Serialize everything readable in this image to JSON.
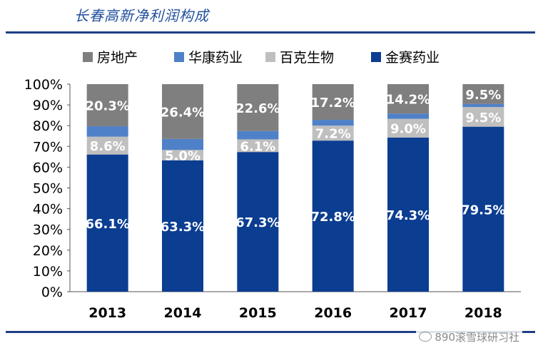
{
  "header": {
    "title": "长春高新净利润构成"
  },
  "watermark": {
    "text": "890滚雪球研习社"
  },
  "chart_data": {
    "type": "bar",
    "stacked": true,
    "title": "长春高新净利润构成",
    "categories": [
      "2013",
      "2014",
      "2015",
      "2016",
      "2017",
      "2018"
    ],
    "ylim": [
      0,
      100
    ],
    "yticks": [
      "0%",
      "10%",
      "20%",
      "30%",
      "40%",
      "50%",
      "60%",
      "70%",
      "80%",
      "90%",
      "100%"
    ],
    "legend_position": "top",
    "series": [
      {
        "name": "金赛药业",
        "color": "#0b3d91",
        "values": [
          66.1,
          63.3,
          67.3,
          72.8,
          74.3,
          79.5
        ],
        "labels": [
          "66.1%",
          "63.3%",
          "67.3%",
          "72.8%",
          "74.3%",
          "79.5%"
        ],
        "label_color": "#ffffff"
      },
      {
        "name": "百克生物",
        "color": "#bfbfbf",
        "values": [
          8.6,
          5.0,
          6.1,
          7.2,
          9.0,
          9.5
        ],
        "labels": [
          "8.6%",
          "5.0%",
          "6.1%",
          "7.2%",
          "9.0%",
          "9.5%"
        ],
        "label_color": "#ffffff"
      },
      {
        "name": "华康药业",
        "color": "#4f81c8",
        "values": [
          5.0,
          5.3,
          4.0,
          2.8,
          2.5,
          1.5
        ],
        "labels": [
          "",
          "",
          "",
          "",
          "",
          ""
        ],
        "label_color": "#ffffff"
      },
      {
        "name": "房地产",
        "color": "#7f7f7f",
        "values": [
          20.3,
          26.4,
          22.6,
          17.2,
          14.2,
          9.5
        ],
        "labels": [
          "20.3%",
          "26.4%",
          "22.6%",
          "17.2%",
          "14.2%",
          "9.5%"
        ],
        "label_color": "#ffffff"
      }
    ],
    "legend_order": [
      "房地产",
      "华康药业",
      "百克生物",
      "金赛药业"
    ]
  }
}
